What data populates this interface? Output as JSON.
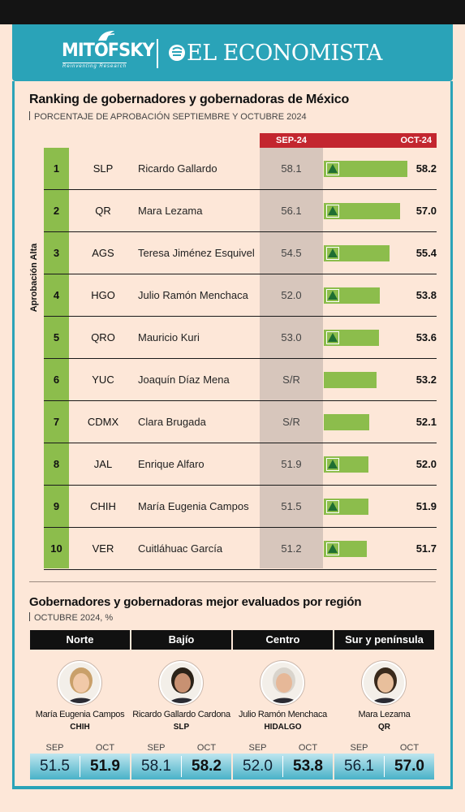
{
  "header": {
    "brand_left": "MITOFSKY",
    "brand_left_tagline": "Reinventing Research",
    "brand_right": "EL ECONOMISTA",
    "brand_color": "#2aa3b8"
  },
  "ranking": {
    "title": "Ranking de gobernadores y gobernadoras de México",
    "subtitle": "PORCENTAJE DE APROBACIÓN SEPTIEMBRE Y OCTUBRE 2024",
    "side_label": "Aprobación Alta",
    "col_sep": "SEP-24",
    "col_oct": "OCT-24"
  },
  "chart_data": {
    "type": "bar",
    "title": "Ranking de gobernadores y gobernadoras de México",
    "subtitle": "PORCENTAJE DE APROBACIÓN SEPTIEMBRE Y OCTUBRE 2024",
    "categories": [
      "Ricardo Gallardo",
      "Mara Lezama",
      "Teresa Jiménez Esquivel",
      "Julio Ramón Menchaca",
      "Mauricio Kuri",
      "Joaquín Díaz Mena",
      "Clara Brugada",
      "Enrique Alfaro",
      "María Eugenia Campos",
      "Cuitláhuac García"
    ],
    "ranks": [
      "1",
      "2",
      "3",
      "4",
      "5",
      "6",
      "7",
      "8",
      "9",
      "10"
    ],
    "states": [
      "SLP",
      "QR",
      "AGS",
      "HGO",
      "QRO",
      "YUC",
      "CDMX",
      "JAL",
      "CHIH",
      "VER"
    ],
    "series": [
      {
        "name": "SEP-24",
        "values": [
          "58.1",
          "56.1",
          "54.5",
          "52.0",
          "53.0",
          "S/R",
          "S/R",
          "51.9",
          "51.5",
          "51.2"
        ]
      },
      {
        "name": "OCT-24",
        "values": [
          58.2,
          57.0,
          55.4,
          53.8,
          53.6,
          53.2,
          52.1,
          52.0,
          51.9,
          51.7
        ]
      }
    ],
    "oct_labels": [
      "58.2",
      "57.0",
      "55.4",
      "53.8",
      "53.6",
      "53.2",
      "52.1",
      "52.0",
      "51.9",
      "51.7"
    ],
    "trend_up": [
      true,
      true,
      true,
      true,
      true,
      false,
      false,
      true,
      true,
      true
    ],
    "bar_color": "#8cbd4c",
    "trend_color": "#1f6e32"
  },
  "regions": {
    "title": "Gobernadores y gobernadoras mejor evaluados por región",
    "subtitle": "OCTUBRE 2024, %",
    "sep_label": "SEP",
    "oct_label": "OCT",
    "items": [
      {
        "region": "Norte",
        "name": "María Eugenia Campos",
        "state": "CHIH",
        "sep": "51.5",
        "oct": "51.9"
      },
      {
        "region": "Bajío",
        "name": "Ricardo Gallardo Cardona",
        "state": "SLP",
        "sep": "58.1",
        "oct": "58.2"
      },
      {
        "region": "Centro",
        "name": "Julio Ramón Menchaca",
        "state": "HIDALGO",
        "sep": "52.0",
        "oct": "53.8"
      },
      {
        "region": "Sur y península",
        "name": "Mara Lezama",
        "state": "QR",
        "sep": "56.1",
        "oct": "57.0"
      }
    ]
  }
}
